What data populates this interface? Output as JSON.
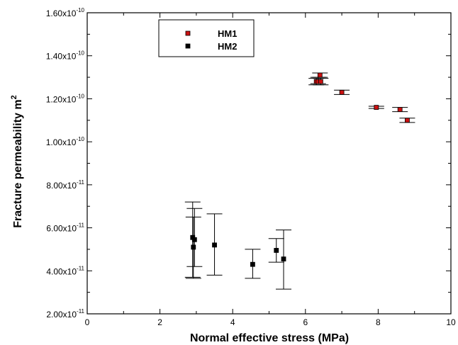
{
  "chart_data": {
    "type": "scatter",
    "title": "",
    "xlabel": "Normal effective stress (MPa)",
    "ylabel": "Fracture permeability m",
    "ylabel_superscript": "2",
    "xlim": [
      0,
      10
    ],
    "ylim": [
      2e-11,
      1.6e-10
    ],
    "x_ticks": [
      {
        "value": 0,
        "label": "0"
      },
      {
        "value": 2,
        "label": "2"
      },
      {
        "value": 4,
        "label": "4"
      },
      {
        "value": 6,
        "label": "6"
      },
      {
        "value": 8,
        "label": "8"
      },
      {
        "value": 10,
        "label": "10"
      }
    ],
    "y_ticks": [
      {
        "value": 2e-11,
        "mantissa": "2.00x10",
        "exp": "-11"
      },
      {
        "value": 4e-11,
        "mantissa": "4.00x10",
        "exp": "-11"
      },
      {
        "value": 6e-11,
        "mantissa": "6.00x10",
        "exp": "-11"
      },
      {
        "value": 8e-11,
        "mantissa": "8.00x10",
        "exp": "-11"
      },
      {
        "value": 1e-10,
        "mantissa": "1.00x10",
        "exp": "-10"
      },
      {
        "value": 1.2e-10,
        "mantissa": "1.20x10",
        "exp": "-10"
      },
      {
        "value": 1.4e-10,
        "mantissa": "1.40x10",
        "exp": "-10"
      },
      {
        "value": 1.6e-10,
        "mantissa": "1.60x10",
        "exp": "-10"
      }
    ],
    "grid": false,
    "legend_position": "top-left",
    "series": [
      {
        "name": "HM1",
        "color": "#cc1111",
        "marker": "square",
        "points": [
          {
            "x": 6.3,
            "y": 1.28e-10,
            "err_low": 1.265e-10,
            "err_high": 1.295e-10
          },
          {
            "x": 6.35,
            "y": 1.28e-10,
            "err_low": 1.27e-10,
            "err_high": 1.3e-10
          },
          {
            "x": 6.4,
            "y": 1.31e-10,
            "err_low": 1.3e-10,
            "err_high": 1.32e-10
          },
          {
            "x": 6.42,
            "y": 1.28e-10,
            "err_low": 1.265e-10,
            "err_high": 1.295e-10
          },
          {
            "x": 7.0,
            "y": 1.23e-10,
            "err_low": 1.22e-10,
            "err_high": 1.24e-10
          },
          {
            "x": 7.95,
            "y": 1.16e-10,
            "err_low": 1.155e-10,
            "err_high": 1.165e-10
          },
          {
            "x": 8.6,
            "y": 1.15e-10,
            "err_low": 1.14e-10,
            "err_high": 1.16e-10
          },
          {
            "x": 8.8,
            "y": 1.1e-10,
            "err_low": 1.09e-10,
            "err_high": 1.11e-10
          }
        ]
      },
      {
        "name": "HM2",
        "color": "#000000",
        "marker": "square",
        "points": [
          {
            "x": 2.9,
            "y": 5.55e-11,
            "err_low": 3.7e-11,
            "err_high": 7.2e-11
          },
          {
            "x": 2.92,
            "y": 5.1e-11,
            "err_low": 3.65e-11,
            "err_high": 6.5e-11
          },
          {
            "x": 2.95,
            "y": 5.45e-11,
            "err_low": 4.2e-11,
            "err_high": 6.9e-11
          },
          {
            "x": 3.5,
            "y": 5.2e-11,
            "err_low": 3.8e-11,
            "err_high": 6.65e-11
          },
          {
            "x": 4.55,
            "y": 4.3e-11,
            "err_low": 3.65e-11,
            "err_high": 5e-11
          },
          {
            "x": 5.2,
            "y": 4.95e-11,
            "err_low": 4.4e-11,
            "err_high": 5.5e-11
          },
          {
            "x": 5.4,
            "y": 4.55e-11,
            "err_low": 3.15e-11,
            "err_high": 5.9e-11
          }
        ]
      }
    ]
  }
}
